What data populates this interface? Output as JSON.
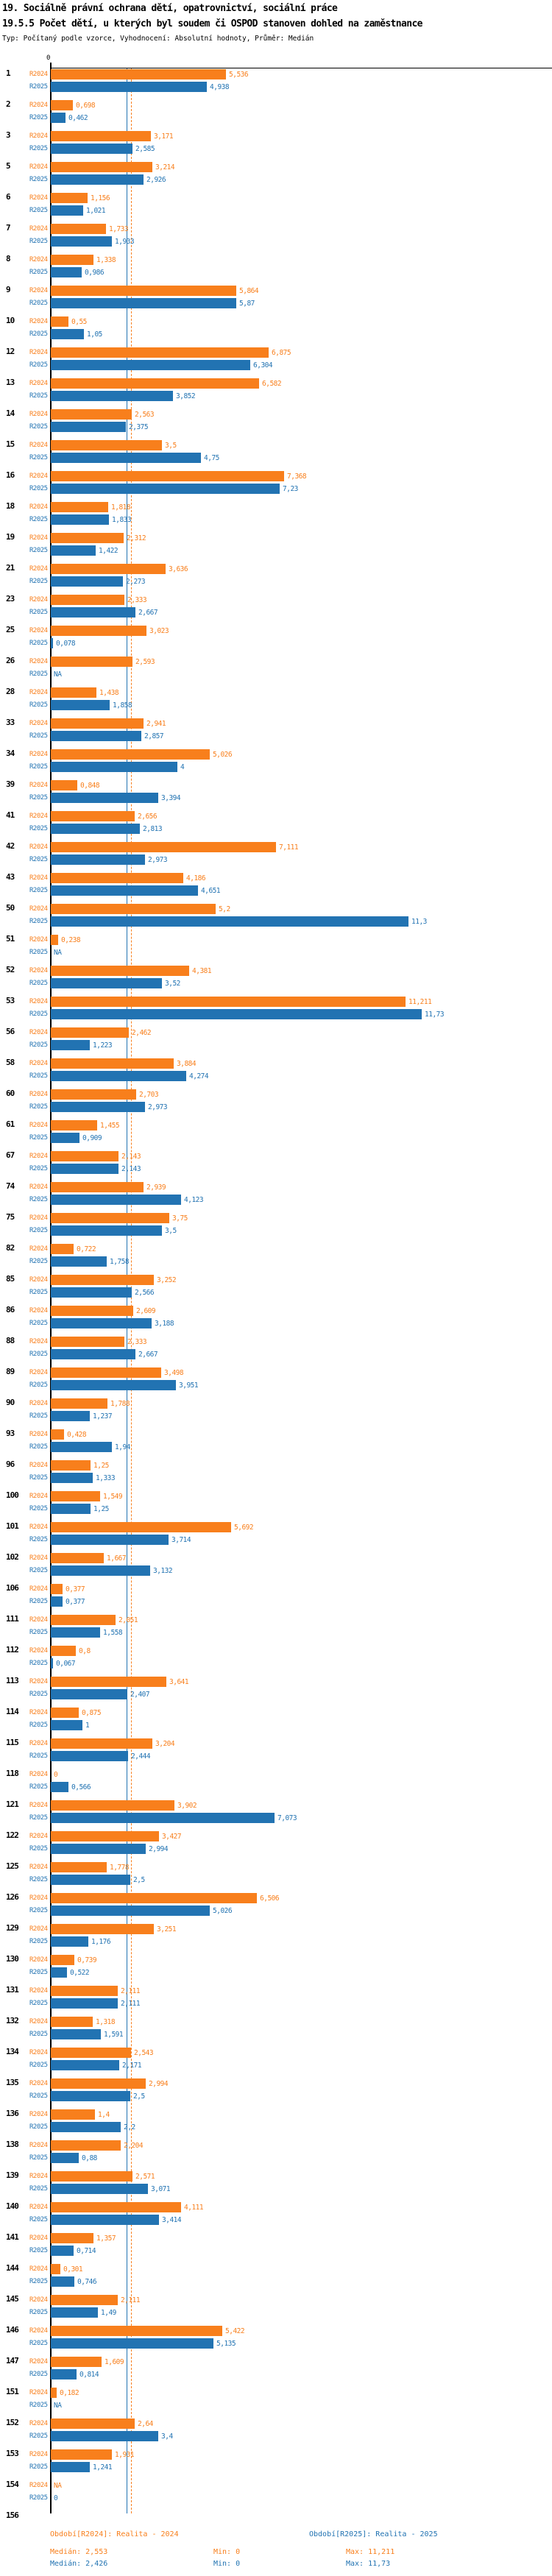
{
  "title": {
    "line1": "19. Sociálně právní ochrana dětí, opatrovnictví, sociální práce",
    "line2": "19.5.5 Počet dětí, u kterých byl soudem či OSPOD stanoven dohled na zaměstnance",
    "line3": "Typ: Počítaný podle vzorce, Vyhodnocení: Absolutní hodnoty, Průměr: Medián"
  },
  "axis": {
    "zero_label": "0"
  },
  "colors": {
    "r2024": "#f87f1c",
    "r2025": "#2273b2",
    "axis": "#000000"
  },
  "series_labels": {
    "r2024": "R2024",
    "r2025": "R2025"
  },
  "legend": {
    "r2024": "Období[R2024]: Realita - 2024",
    "r2025": "Období[R2025]: Realita - 2025"
  },
  "stats": {
    "r2024": {
      "median": "Medián: 2,553",
      "min": "Min: 0",
      "max": "Max: 11,211"
    },
    "r2025": {
      "median": "Medián: 2,426",
      "min": "Min: 0",
      "max": "Max: 11,73"
    }
  },
  "chart_data": {
    "type": "bar",
    "orientation": "horizontal",
    "series_names": [
      "R2024",
      "R2025"
    ],
    "xlim": [
      0,
      12
    ],
    "grid": false,
    "reference_lines": [
      {
        "series": "R2024",
        "label": "median",
        "value": 2.553
      },
      {
        "series": "R2025",
        "label": "median",
        "value": 2.426
      }
    ],
    "value_note": "values shown with Czech decimal comma; NA = missing",
    "rows": [
      [
        "1",
        "5,536",
        "4,938"
      ],
      [
        "2",
        "0,698",
        "0,462"
      ],
      [
        "3",
        "3,171",
        "2,585"
      ],
      [
        "5",
        "3,214",
        "2,926"
      ],
      [
        "6",
        "1,156",
        "1,021"
      ],
      [
        "7",
        "1,733",
        "1,933"
      ],
      [
        "8",
        "1,338",
        "0,986"
      ],
      [
        "9",
        "5,864",
        "5,87"
      ],
      [
        "10",
        "0,55",
        "1,05"
      ],
      [
        "12",
        "6,875",
        "6,304"
      ],
      [
        "13",
        "6,582",
        "3,852"
      ],
      [
        "14",
        "2,563",
        "2,375"
      ],
      [
        "15",
        "3,5",
        "4,75"
      ],
      [
        "16",
        "7,368",
        "7,23"
      ],
      [
        "18",
        "1,818",
        "1,833"
      ],
      [
        "19",
        "2,312",
        "1,422"
      ],
      [
        "21",
        "3,636",
        "2,273"
      ],
      [
        "23",
        "2,333",
        "2,667"
      ],
      [
        "25",
        "3,023",
        "0,078"
      ],
      [
        "26",
        "2,593",
        "NA"
      ],
      [
        "28",
        "1,438",
        "1,858"
      ],
      [
        "33",
        "2,941",
        "2,857"
      ],
      [
        "34",
        "5,026",
        "4"
      ],
      [
        "39",
        "0,848",
        "3,394"
      ],
      [
        "41",
        "2,656",
        "2,813"
      ],
      [
        "42",
        "7,111",
        "2,973"
      ],
      [
        "43",
        "4,186",
        "4,651"
      ],
      [
        "50",
        "5,2",
        "11,3"
      ],
      [
        "51",
        "0,238",
        "NA"
      ],
      [
        "52",
        "4,381",
        "3,52"
      ],
      [
        "53",
        "11,211",
        "11,73"
      ],
      [
        "56",
        "2,462",
        "1,223"
      ],
      [
        "58",
        "3,884",
        "4,274"
      ],
      [
        "60",
        "2,703",
        "2,973"
      ],
      [
        "61",
        "1,455",
        "0,909"
      ],
      [
        "67",
        "2,143",
        "2,143"
      ],
      [
        "74",
        "2,939",
        "4,123"
      ],
      [
        "75",
        "3,75",
        "3,5"
      ],
      [
        "82",
        "0,722",
        "1,758"
      ],
      [
        "85",
        "3,252",
        "2,566"
      ],
      [
        "86",
        "2,609",
        "3,188"
      ],
      [
        "88",
        "2,333",
        "2,667"
      ],
      [
        "89",
        "3,498",
        "3,951"
      ],
      [
        "90",
        "1,788",
        "1,237"
      ],
      [
        "93",
        "0,428",
        "1,94"
      ],
      [
        "96",
        "1,25",
        "1,333"
      ],
      [
        "100",
        "1,549",
        "1,25"
      ],
      [
        "101",
        "5,692",
        "3,714"
      ],
      [
        "102",
        "1,667",
        "3,132"
      ],
      [
        "106",
        "0,377",
        "0,377"
      ],
      [
        "111",
        "2,051",
        "1,558"
      ],
      [
        "112",
        "0,8",
        "0,067"
      ],
      [
        "113",
        "3,641",
        "2,407"
      ],
      [
        "114",
        "0,875",
        "1"
      ],
      [
        "115",
        "3,204",
        "2,444"
      ],
      [
        "118",
        "0",
        "0,566"
      ],
      [
        "121",
        "3,902",
        "7,073"
      ],
      [
        "122",
        "3,427",
        "2,994"
      ],
      [
        "125",
        "1,778",
        "2,5"
      ],
      [
        "126",
        "6,506",
        "5,026"
      ],
      [
        "129",
        "3,251",
        "1,176"
      ],
      [
        "130",
        "0,739",
        "0,522"
      ],
      [
        "131",
        "2,111",
        "2,111"
      ],
      [
        "132",
        "1,318",
        "1,591"
      ],
      [
        "134",
        "2,543",
        "2,171"
      ],
      [
        "135",
        "2,994",
        "2,5"
      ],
      [
        "136",
        "1,4",
        "2,2"
      ],
      [
        "138",
        "2,204",
        "0,88"
      ],
      [
        "139",
        "2,571",
        "3,071"
      ],
      [
        "140",
        "4,111",
        "3,414"
      ],
      [
        "141",
        "1,357",
        "0,714"
      ],
      [
        "144",
        "0,301",
        "0,746"
      ],
      [
        "145",
        "2,111",
        "1,49"
      ],
      [
        "146",
        "5,422",
        "5,135"
      ],
      [
        "147",
        "1,609",
        "0,814"
      ],
      [
        "151",
        "0,182",
        "NA"
      ],
      [
        "152",
        "2,64",
        "3,4"
      ],
      [
        "153",
        "1,931",
        "1,241"
      ],
      [
        "154",
        "NA",
        "0"
      ],
      [
        "156",
        null,
        null
      ]
    ]
  }
}
